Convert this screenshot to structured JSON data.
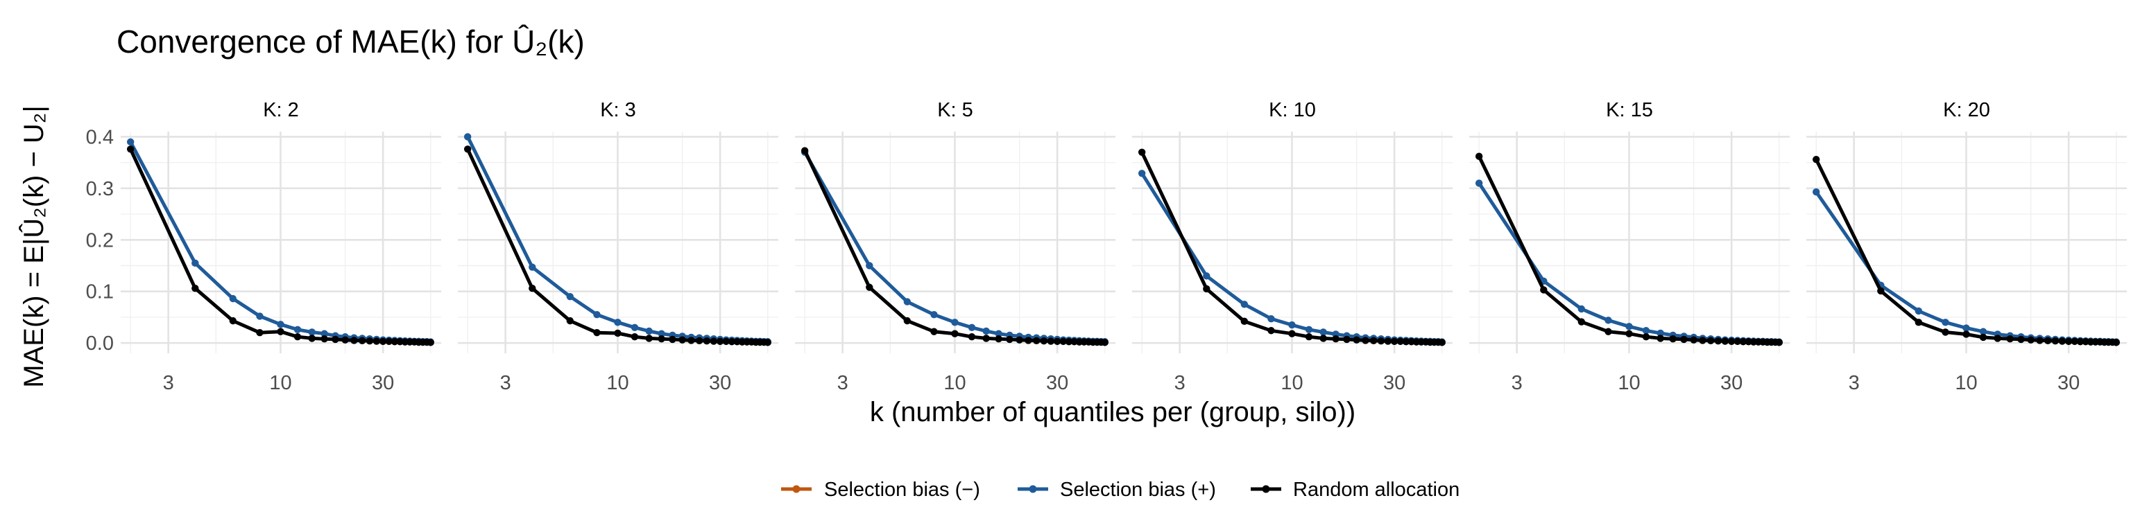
{
  "chart_data": {
    "type": "line",
    "title": "Convergence of MAE(k) for Û₂(k)",
    "xlabel": "k (number of quantiles per (group, silo))",
    "ylabel": "MAE(k) = E|Û₂(k) − U₂|",
    "x_scale": "log10",
    "xlim": [
      1.8,
      56
    ],
    "ylim": [
      -0.02,
      0.41
    ],
    "x_ticks": [
      3,
      10,
      30
    ],
    "x_tick_labels": [
      "3",
      "10",
      "30"
    ],
    "y_ticks": [
      0,
      0.1,
      0.2,
      0.3,
      0.4
    ],
    "y_tick_labels": [
      "0.0",
      "0.1",
      "0.2",
      "0.3",
      "0.4"
    ],
    "grid": true,
    "legend_position": "bottom",
    "x": [
      2,
      4,
      6,
      8,
      10,
      12,
      14,
      16,
      18,
      20,
      22,
      24,
      26,
      28,
      30,
      32,
      34,
      36,
      38,
      40,
      42,
      44,
      46,
      48,
      50
    ],
    "legend": [
      {
        "name": "Selection bias (−)",
        "color": "#c1560f"
      },
      {
        "name": "Selection bias (+)",
        "color": "#1f5b9a"
      },
      {
        "name": "Random allocation",
        "color": "#000000"
      }
    ],
    "panels": [
      {
        "strip": "K: 2",
        "series": [
          {
            "name": "Selection bias (+)",
            "color": "#1f5b9a",
            "values": [
              0.39,
              0.155,
              0.086,
              0.052,
              0.036,
              0.026,
              0.021,
              0.018,
              0.014,
              0.012,
              0.01,
              0.009,
              0.008,
              0.007,
              0.006,
              0.0055,
              0.005,
              0.0045,
              0.004,
              0.0035,
              0.003,
              0.003,
              0.0025,
              0.0025,
              0.002
            ]
          },
          {
            "name": "Random allocation",
            "color": "#000000",
            "values": [
              0.376,
              0.106,
              0.043,
              0.02,
              0.022,
              0.012,
              0.009,
              0.008,
              0.007,
              0.006,
              0.005,
              0.0045,
              0.004,
              0.0035,
              0.003,
              0.003,
              0.0025,
              0.0025,
              0.002,
              0.002,
              0.002,
              0.0015,
              0.0015,
              0.0015,
              0.001
            ]
          }
        ]
      },
      {
        "strip": "K: 3",
        "series": [
          {
            "name": "Selection bias (+)",
            "color": "#1f5b9a",
            "values": [
              0.4,
              0.147,
              0.09,
              0.055,
              0.04,
              0.03,
              0.023,
              0.018,
              0.015,
              0.013,
              0.011,
              0.01,
              0.009,
              0.008,
              0.007,
              0.006,
              0.0055,
              0.005,
              0.0045,
              0.004,
              0.0035,
              0.003,
              0.003,
              0.0025,
              0.0025
            ]
          },
          {
            "name": "Random allocation",
            "color": "#000000",
            "values": [
              0.376,
              0.106,
              0.043,
              0.02,
              0.019,
              0.012,
              0.009,
              0.008,
              0.007,
              0.006,
              0.005,
              0.0045,
              0.004,
              0.0035,
              0.003,
              0.003,
              0.0025,
              0.0025,
              0.002,
              0.002,
              0.002,
              0.0015,
              0.0015,
              0.0015,
              0.001
            ]
          }
        ]
      },
      {
        "strip": "K: 5",
        "series": [
          {
            "name": "Selection bias (+)",
            "color": "#1f5b9a",
            "values": [
              0.37,
              0.15,
              0.08,
              0.055,
              0.04,
              0.03,
              0.023,
              0.018,
              0.015,
              0.013,
              0.011,
              0.01,
              0.009,
              0.008,
              0.007,
              0.006,
              0.0055,
              0.005,
              0.0045,
              0.004,
              0.0035,
              0.003,
              0.003,
              0.0025,
              0.0025
            ]
          },
          {
            "name": "Random allocation",
            "color": "#000000",
            "values": [
              0.373,
              0.108,
              0.043,
              0.022,
              0.018,
              0.012,
              0.009,
              0.008,
              0.007,
              0.006,
              0.005,
              0.0045,
              0.004,
              0.0035,
              0.003,
              0.003,
              0.0025,
              0.0025,
              0.002,
              0.002,
              0.002,
              0.0015,
              0.0015,
              0.0015,
              0.001
            ]
          }
        ]
      },
      {
        "strip": "K: 10",
        "series": [
          {
            "name": "Selection bias (+)",
            "color": "#1f5b9a",
            "values": [
              0.329,
              0.13,
              0.075,
              0.047,
              0.035,
              0.026,
              0.021,
              0.017,
              0.014,
              0.012,
              0.01,
              0.009,
              0.008,
              0.007,
              0.006,
              0.0055,
              0.005,
              0.0045,
              0.004,
              0.0035,
              0.003,
              0.003,
              0.0025,
              0.0025,
              0.002
            ]
          },
          {
            "name": "Random allocation",
            "color": "#000000",
            "values": [
              0.37,
              0.105,
              0.042,
              0.024,
              0.018,
              0.012,
              0.009,
              0.008,
              0.007,
              0.006,
              0.005,
              0.0045,
              0.004,
              0.0035,
              0.003,
              0.003,
              0.0025,
              0.0025,
              0.002,
              0.002,
              0.002,
              0.0015,
              0.0015,
              0.0015,
              0.001
            ]
          }
        ]
      },
      {
        "strip": "K: 15",
        "series": [
          {
            "name": "Selection bias (+)",
            "color": "#1f5b9a",
            "values": [
              0.31,
              0.12,
              0.066,
              0.044,
              0.032,
              0.024,
              0.019,
              0.015,
              0.013,
              0.011,
              0.009,
              0.008,
              0.007,
              0.006,
              0.0055,
              0.005,
              0.0045,
              0.004,
              0.0035,
              0.003,
              0.003,
              0.0025,
              0.0025,
              0.002,
              0.002
            ]
          },
          {
            "name": "Random allocation",
            "color": "#000000",
            "values": [
              0.362,
              0.103,
              0.041,
              0.022,
              0.018,
              0.012,
              0.009,
              0.008,
              0.007,
              0.006,
              0.005,
              0.0045,
              0.004,
              0.0035,
              0.003,
              0.003,
              0.0025,
              0.0025,
              0.002,
              0.002,
              0.002,
              0.0015,
              0.0015,
              0.0015,
              0.001
            ]
          }
        ]
      },
      {
        "strip": "K: 20",
        "series": [
          {
            "name": "Selection bias (+)",
            "color": "#1f5b9a",
            "values": [
              0.293,
              0.112,
              0.062,
              0.04,
              0.029,
              0.022,
              0.017,
              0.014,
              0.012,
              0.01,
              0.009,
              0.008,
              0.007,
              0.006,
              0.0055,
              0.005,
              0.0045,
              0.004,
              0.0035,
              0.003,
              0.003,
              0.0025,
              0.0025,
              0.002,
              0.002
            ]
          },
          {
            "name": "Random allocation",
            "color": "#000000",
            "values": [
              0.356,
              0.101,
              0.04,
              0.021,
              0.017,
              0.011,
              0.009,
              0.008,
              0.007,
              0.006,
              0.005,
              0.0045,
              0.004,
              0.0035,
              0.003,
              0.003,
              0.0025,
              0.0025,
              0.002,
              0.002,
              0.002,
              0.0015,
              0.0015,
              0.0015,
              0.001
            ]
          }
        ]
      }
    ]
  }
}
